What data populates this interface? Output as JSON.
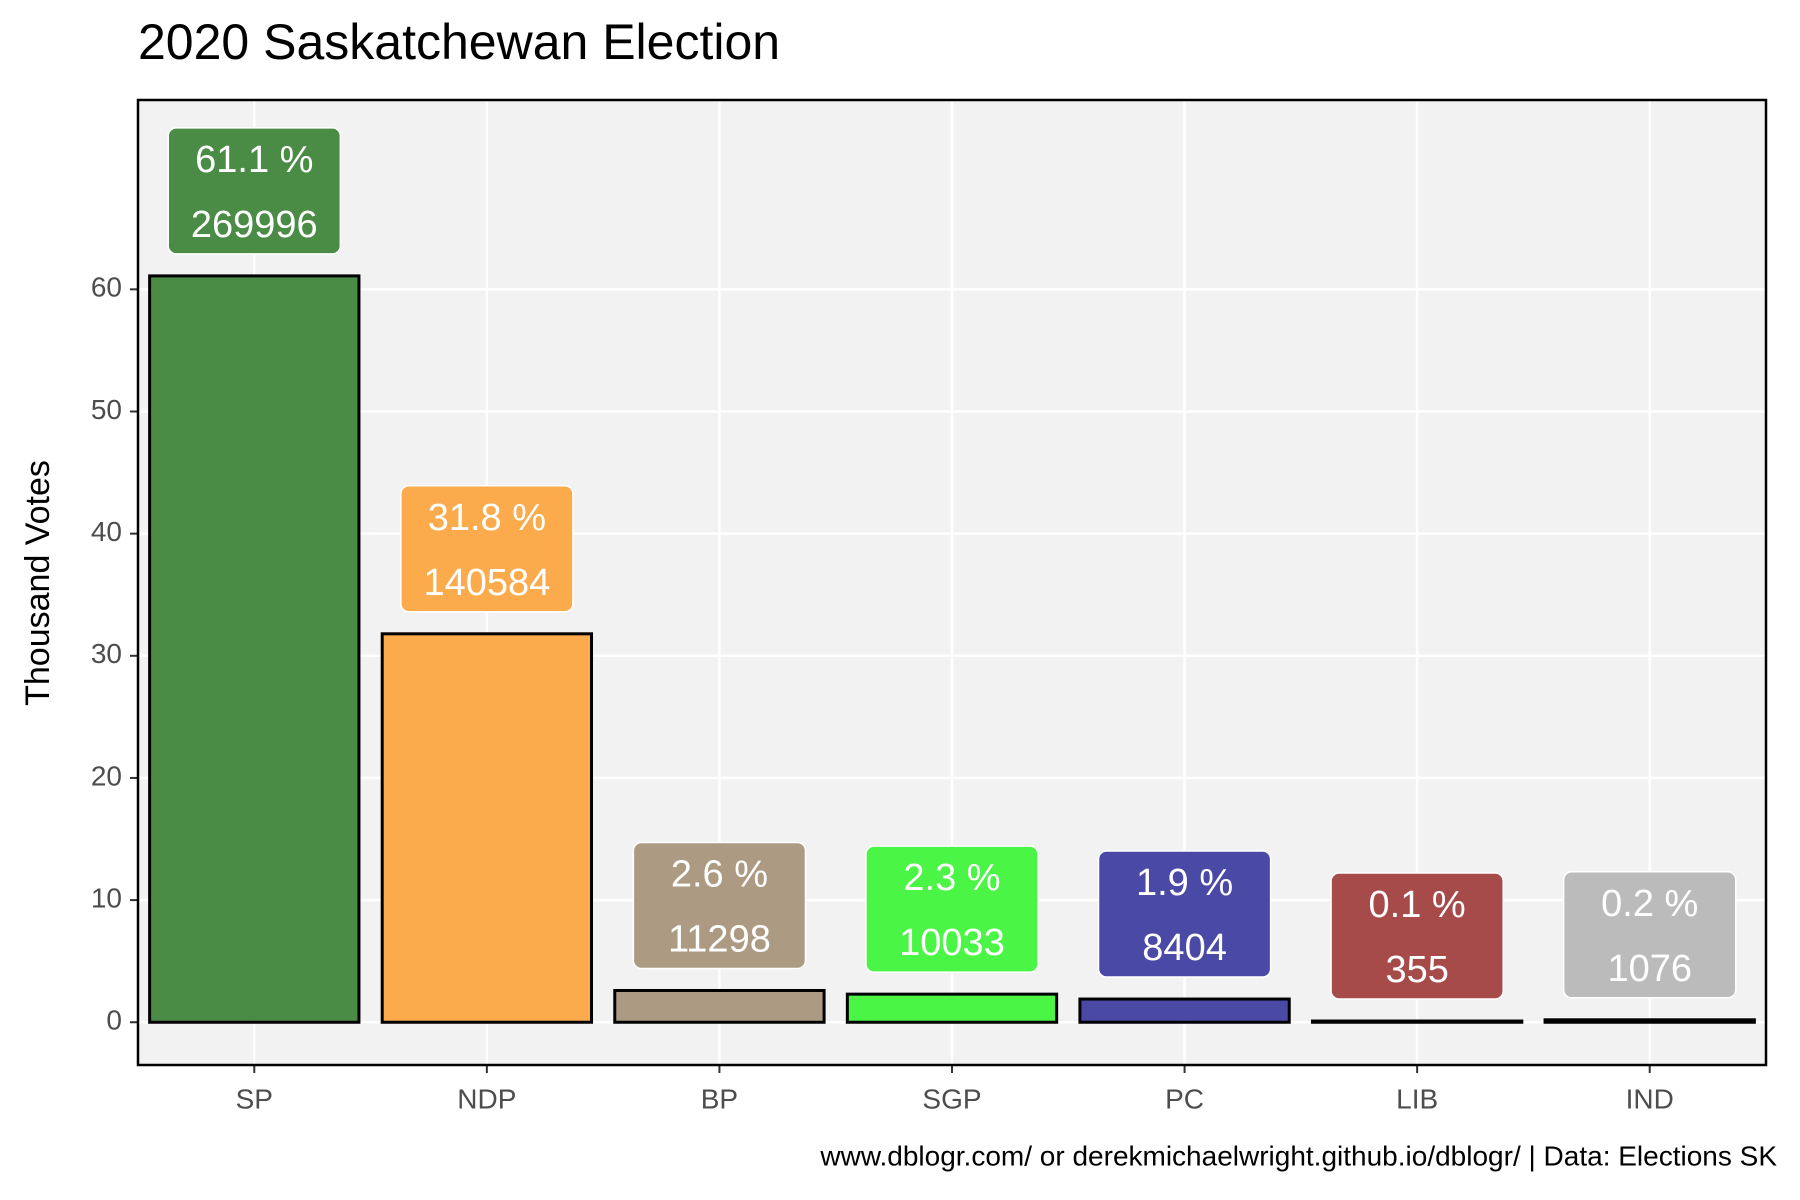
{
  "chart_data": {
    "type": "bar",
    "title": "2020 Saskatchewan Election",
    "y_label": "Thousand Votes",
    "caption": "www.dblogr.com/ or derekmichaelwright.github.io/dblogr/ | Data: Elections SK",
    "categories": [
      "SP",
      "NDP",
      "BP",
      "SGP",
      "PC",
      "LIB",
      "IND"
    ],
    "values": [
      61.1,
      31.8,
      2.6,
      2.3,
      1.9,
      0.1,
      0.2
    ],
    "value_labels": [
      "61.1 %",
      "31.8 %",
      "2.6 %",
      "2.3 %",
      "1.9 %",
      "0.1 %",
      "0.2 %"
    ],
    "votes": [
      269996,
      140584,
      11298,
      10033,
      8404,
      355,
      1076
    ],
    "colors": [
      "#4a8c45",
      "#fbab4b",
      "#ad9a83",
      "#4af545",
      "#4a4aa6",
      "#a64a4a",
      "#bbbbbb"
    ],
    "ylim": [
      -3.5,
      75.5
    ],
    "yticks": [
      0,
      10,
      20,
      30,
      40,
      50,
      60
    ],
    "grid": true
  }
}
